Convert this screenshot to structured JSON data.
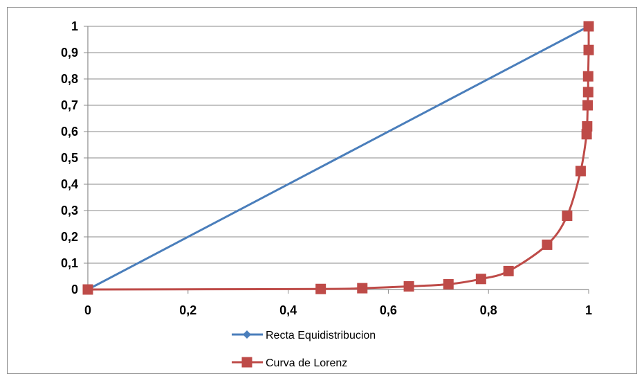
{
  "chart_data": {
    "type": "scatter",
    "title": "",
    "xlabel": "",
    "ylabel": "",
    "xlim": [
      0,
      1
    ],
    "ylim": [
      0,
      1
    ],
    "grid": "horizontal",
    "legend_position": "bottom",
    "x_ticks": [
      "0",
      "0,2",
      "0,4",
      "0,6",
      "0,8",
      "1"
    ],
    "y_ticks": [
      "0",
      "0,1",
      "0,2",
      "0,3",
      "0,4",
      "0,5",
      "0,6",
      "0,7",
      "0,8",
      "0,9",
      "1"
    ],
    "series": [
      {
        "name": "Recta Equidistribucion",
        "color": "#4a7ebb",
        "marker": "diamond",
        "points": [
          [
            0,
            0
          ],
          [
            1,
            1
          ]
        ]
      },
      {
        "name": "Curva de Lorenz",
        "color": "#be4b48",
        "marker": "square",
        "points": [
          [
            0,
            0
          ],
          [
            0.465,
            0.002
          ],
          [
            0.548,
            0.005
          ],
          [
            0.641,
            0.012
          ],
          [
            0.72,
            0.02
          ],
          [
            0.785,
            0.04
          ],
          [
            0.84,
            0.07
          ],
          [
            0.917,
            0.17
          ],
          [
            0.957,
            0.28
          ],
          [
            0.984,
            0.45
          ],
          [
            0.996,
            0.59
          ],
          [
            0.997,
            0.62
          ],
          [
            0.998,
            0.7
          ],
          [
            0.999,
            0.75
          ],
          [
            0.999,
            0.81
          ],
          [
            1,
            0.91
          ],
          [
            1,
            1
          ]
        ]
      }
    ]
  }
}
